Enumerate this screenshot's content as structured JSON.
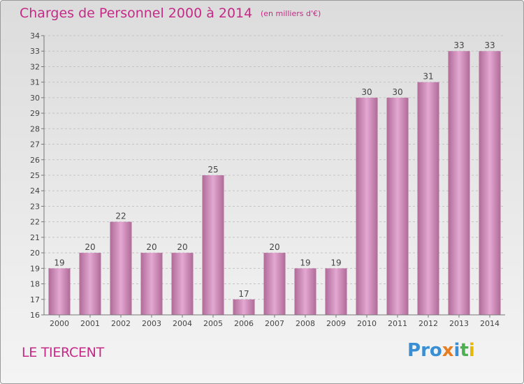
{
  "title": "Charges de Personnel 2000 à 2014",
  "subtitle": "(en milliers d'€)",
  "commune": "LE TIERCENT",
  "logo": {
    "text": "Proxiti",
    "letters": [
      {
        "char": "P",
        "color": "#3a8fd4"
      },
      {
        "char": "r",
        "color": "#3a8fd4"
      },
      {
        "char": "o",
        "color": "#3a8fd4"
      },
      {
        "char": "x",
        "color": "#e67e22"
      },
      {
        "char": "i",
        "color": "#3a8fd4"
      },
      {
        "char": "t",
        "color": "#4caf50"
      },
      {
        "char": "i",
        "color": "#e6b800"
      }
    ]
  },
  "colors": {
    "bar_fill_top": "#e3a8d2",
    "bar_fill_bottom": "#b06a98",
    "text_accent": "#c42a86"
  },
  "chart_data": {
    "type": "bar",
    "categories": [
      "2000",
      "2001",
      "2002",
      "2003",
      "2004",
      "2005",
      "2006",
      "2007",
      "2008",
      "2009",
      "2010",
      "2011",
      "2012",
      "2013",
      "2014"
    ],
    "values": [
      19,
      20,
      22,
      20,
      20,
      25,
      17,
      20,
      19,
      19,
      30,
      30,
      31,
      33,
      33
    ],
    "data_labels": [
      "19",
      "20",
      "22",
      "20",
      "20",
      "25",
      "17",
      "20",
      "19",
      "19",
      "30",
      "30",
      "31",
      "33",
      "33"
    ],
    "ylim": [
      16,
      34
    ],
    "yticks": [
      "16",
      "17",
      "18",
      "19",
      "20",
      "21",
      "22",
      "23",
      "24",
      "25",
      "26",
      "27",
      "28",
      "29",
      "30",
      "31",
      "32",
      "33",
      "34"
    ],
    "grid": "y-dashed",
    "title": "Charges de Personnel 2000 à 2014",
    "xlabel": "",
    "ylabel": ""
  }
}
